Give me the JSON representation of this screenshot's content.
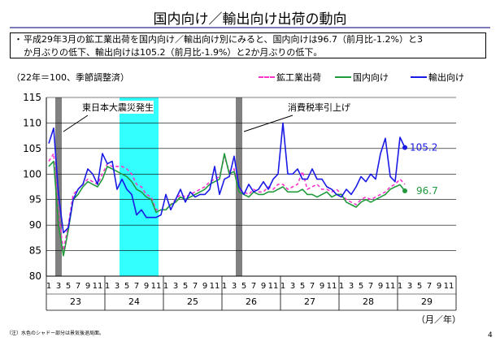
{
  "page": {
    "title": "国内向け／輸出向け出荷の動向",
    "bullet": "・",
    "note_lines": [
      "平成29年3月の鉱工業出荷を国内向け／輸出向け別にみると、国内向けは96.7（前月比-1.2%）と3",
      "か月ぶりの低下、輸出向けは105.2（前月比-1.9%）と2か月ぶりの低下。"
    ],
    "base_note": "（22年＝100、季節調整済）",
    "footnote": "（注）水色のシャドー部分は景気後退局面。",
    "unit": "（月／年）",
    "page_number": "4",
    "callouts": {
      "earthquake": "東日本大震災発生",
      "tax": "消費税率引上げ"
    },
    "end_labels": {
      "export": "105.2",
      "domestic": "96.7"
    }
  },
  "colors": {
    "shipments": "#ff33cc",
    "domestic": "#219a3c",
    "export": "#1a1ae6",
    "recession_shade": "#33ffff",
    "event_bar": "#808080",
    "grid": "#000000"
  },
  "chart_data": {
    "type": "line",
    "ylim": [
      80,
      115
    ],
    "yticks": [
      80,
      85,
      90,
      95,
      100,
      105,
      110,
      115
    ],
    "month_ticks": [
      "1",
      "3",
      "5",
      "7",
      "9",
      "11"
    ],
    "years": [
      "23",
      "24",
      "25",
      "26",
      "27",
      "28",
      "29"
    ],
    "x_start": "2011-01",
    "recession_shading": {
      "from": "2012-04",
      "to": "2012-11"
    },
    "events": [
      {
        "label": "東日本大震災発生",
        "month": "2011-03"
      },
      {
        "label": "消費税率引上げ",
        "month": "2014-04"
      }
    ],
    "series": [
      {
        "name": "鉱工業出荷",
        "style": "dashed",
        "values": [
          102.5,
          104.0,
          92.0,
          85.0,
          90.0,
          96.0,
          97.0,
          98.0,
          99.0,
          98.5,
          98.0,
          100.0,
          102.0,
          101.5,
          101.5,
          101.5,
          101.0,
          100.0,
          98.0,
          97.5,
          96.0,
          95.5,
          93.0,
          93.0,
          93.0,
          94.0,
          95.0,
          96.0,
          95.5,
          96.0,
          96.5,
          97.0,
          97.5,
          98.5,
          99.0,
          99.5,
          103.5,
          100.5,
          101.0,
          97.0,
          96.5,
          96.0,
          97.0,
          96.5,
          96.5,
          97.5,
          97.0,
          98.0,
          98.0,
          97.0,
          97.5,
          98.0,
          100.5,
          97.0,
          97.5,
          98.0,
          97.0,
          97.0,
          96.5,
          97.0,
          96.0,
          95.0,
          94.5,
          94.0,
          95.0,
          95.5,
          95.0,
          95.5,
          96.0,
          96.5,
          97.5,
          98.0,
          99.0,
          98.0
        ]
      },
      {
        "name": "国内向け",
        "style": "solid",
        "values": [
          101.5,
          102.5,
          90.0,
          84.0,
          89.0,
          95.0,
          96.0,
          97.5,
          98.5,
          98.0,
          97.5,
          99.0,
          101.5,
          101.0,
          100.5,
          100.0,
          99.5,
          98.5,
          97.0,
          96.5,
          95.5,
          95.0,
          92.5,
          93.0,
          93.0,
          94.0,
          94.5,
          95.5,
          95.0,
          95.5,
          96.0,
          96.5,
          97.0,
          98.0,
          98.5,
          99.0,
          104.0,
          100.0,
          100.5,
          96.5,
          96.0,
          95.5,
          96.5,
          96.0,
          96.0,
          96.5,
          96.5,
          97.0,
          97.5,
          96.5,
          96.5,
          96.5,
          97.0,
          96.0,
          96.0,
          95.5,
          96.0,
          96.5,
          95.5,
          96.0,
          96.0,
          94.5,
          94.0,
          93.5,
          94.5,
          95.0,
          94.5,
          95.0,
          95.5,
          96.0,
          97.0,
          97.5,
          97.9,
          96.7
        ]
      },
      {
        "name": "輸出向け",
        "style": "solid",
        "values": [
          106.0,
          109.0,
          96.0,
          88.5,
          89.5,
          95.0,
          97.0,
          98.0,
          101.0,
          100.0,
          98.0,
          104.0,
          102.0,
          102.5,
          97.0,
          99.0,
          97.0,
          96.0,
          92.0,
          93.0,
          91.5,
          91.5,
          91.5,
          92.0,
          96.0,
          93.0,
          95.0,
          97.0,
          94.5,
          96.5,
          95.5,
          96.0,
          96.0,
          97.0,
          101.5,
          96.0,
          99.0,
          99.5,
          103.5,
          97.5,
          96.0,
          98.0,
          96.5,
          97.0,
          98.5,
          97.0,
          99.0,
          100.0,
          110.0,
          100.0,
          100.0,
          101.0,
          99.0,
          99.0,
          101.0,
          99.0,
          99.0,
          97.5,
          97.0,
          96.0,
          95.5,
          97.0,
          96.0,
          97.5,
          99.5,
          98.5,
          100.0,
          99.0,
          104.0,
          107.0,
          99.5,
          98.5,
          107.2,
          105.2
        ]
      }
    ]
  }
}
